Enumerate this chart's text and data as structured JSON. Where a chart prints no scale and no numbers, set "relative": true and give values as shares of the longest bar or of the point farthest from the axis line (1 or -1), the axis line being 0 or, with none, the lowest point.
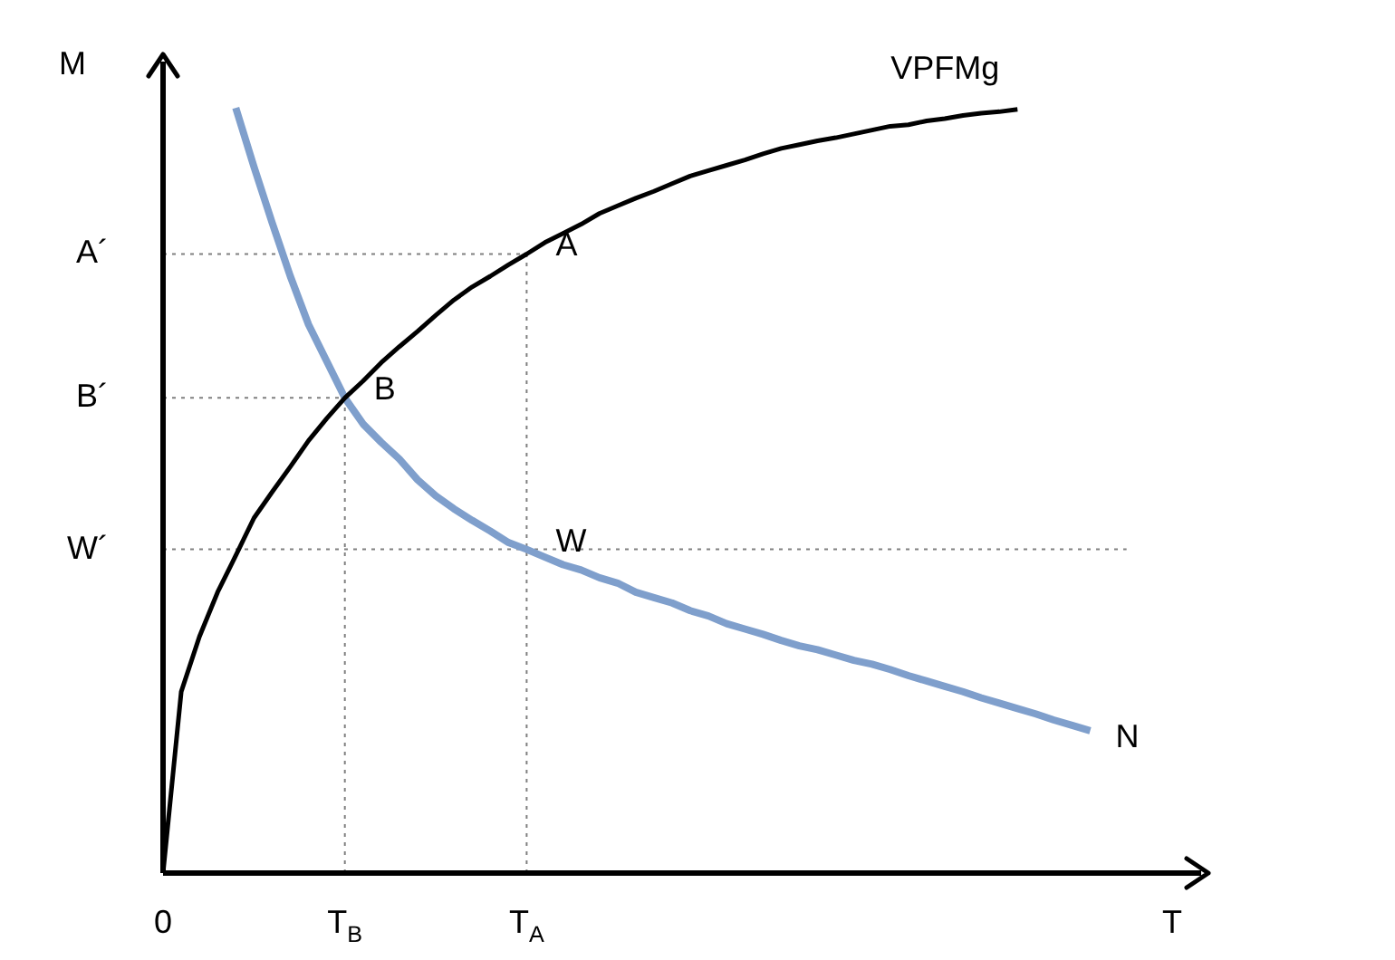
{
  "chart_data": {
    "type": "line",
    "relative": true,
    "xlabel": "T",
    "ylabel": "M",
    "grid": false,
    "legend": false,
    "marker": "none",
    "categories": [
      "0",
      null,
      null,
      null,
      null,
      null,
      null,
      null,
      null,
      null,
      "T$_{B}$",
      null,
      null,
      null,
      null,
      null,
      null,
      null,
      null,
      null,
      "T$_{A}$",
      null,
      null,
      null,
      null,
      null,
      null,
      null,
      null,
      null,
      null,
      null,
      null,
      null,
      null,
      null,
      null,
      null,
      null,
      null,
      null,
      null,
      null,
      null,
      null,
      null,
      null,
      null,
      null,
      null,
      null,
      null,
      null,
      null
    ],
    "series": [
      {
        "name": "VPFMg",
        "color": "#000000",
        "values": [
          0,
          0.237,
          0.309,
          0.367,
          0.415,
          0.464,
          0.498,
          0.531,
          0.565,
          0.594,
          0.621,
          0.643,
          0.667,
          0.688,
          0.708,
          0.729,
          0.749,
          0.766,
          0.78,
          0.795,
          0.809,
          0.824,
          0.836,
          0.848,
          0.862,
          0.872,
          0.882,
          0.891,
          0.901,
          0.911,
          0.918,
          0.925,
          0.932,
          0.94,
          0.947,
          0.952,
          0.957,
          0.961,
          0.966,
          0.971,
          0.976,
          0.978,
          0.983,
          0.986,
          0.99,
          0.993,
          0.995,
          0.998,
          null,
          null,
          null,
          null,
          null,
          null
        ]
      },
      {
        "name": "N",
        "color": "#7f9fcc",
        "values": [
          null,
          null,
          null,
          null,
          1,
          0.923,
          0.85,
          0.78,
          0.717,
          0.669,
          0.621,
          0.587,
          0.563,
          0.541,
          0.514,
          0.493,
          0.476,
          0.461,
          0.447,
          0.432,
          0.423,
          0.413,
          0.403,
          0.396,
          0.386,
          0.379,
          0.367,
          0.36,
          0.353,
          0.343,
          0.336,
          0.326,
          0.319,
          0.312,
          0.304,
          0.297,
          0.292,
          0.285,
          0.278,
          0.273,
          0.266,
          0.258,
          0.251,
          0.244,
          0.237,
          0.229,
          0.222,
          0.215,
          0.208,
          0.2,
          0.193,
          0.186,
          null,
          null
        ]
      }
    ],
    "ref_lines": [
      {
        "axis": "y",
        "value": 0.809,
        "label": "A´",
        "color": "#808080",
        "line_style": "dotted"
      },
      {
        "axis": "y",
        "value": 0.621,
        "label": "B´",
        "color": "#808080",
        "line_style": "dotted"
      },
      {
        "axis": "y",
        "value": 0.423,
        "label": "W´",
        "color": "#808080",
        "line_style": "dotted"
      },
      {
        "axis": "x",
        "value": "T$_{B}$",
        "color": "#808080",
        "line_style": "dotted"
      },
      {
        "axis": "x",
        "value": "T$_{A}$",
        "color": "#808080",
        "line_style": "dotted"
      }
    ],
    "annotations": [
      {
        "text": "A",
        "x": "T$_{A}$",
        "y": 0.809
      },
      {
        "text": "B",
        "x": "T$_{B}$",
        "y": 0.621
      },
      {
        "text": "W",
        "x": "T$_{A}$",
        "y": 0.423
      }
    ]
  }
}
